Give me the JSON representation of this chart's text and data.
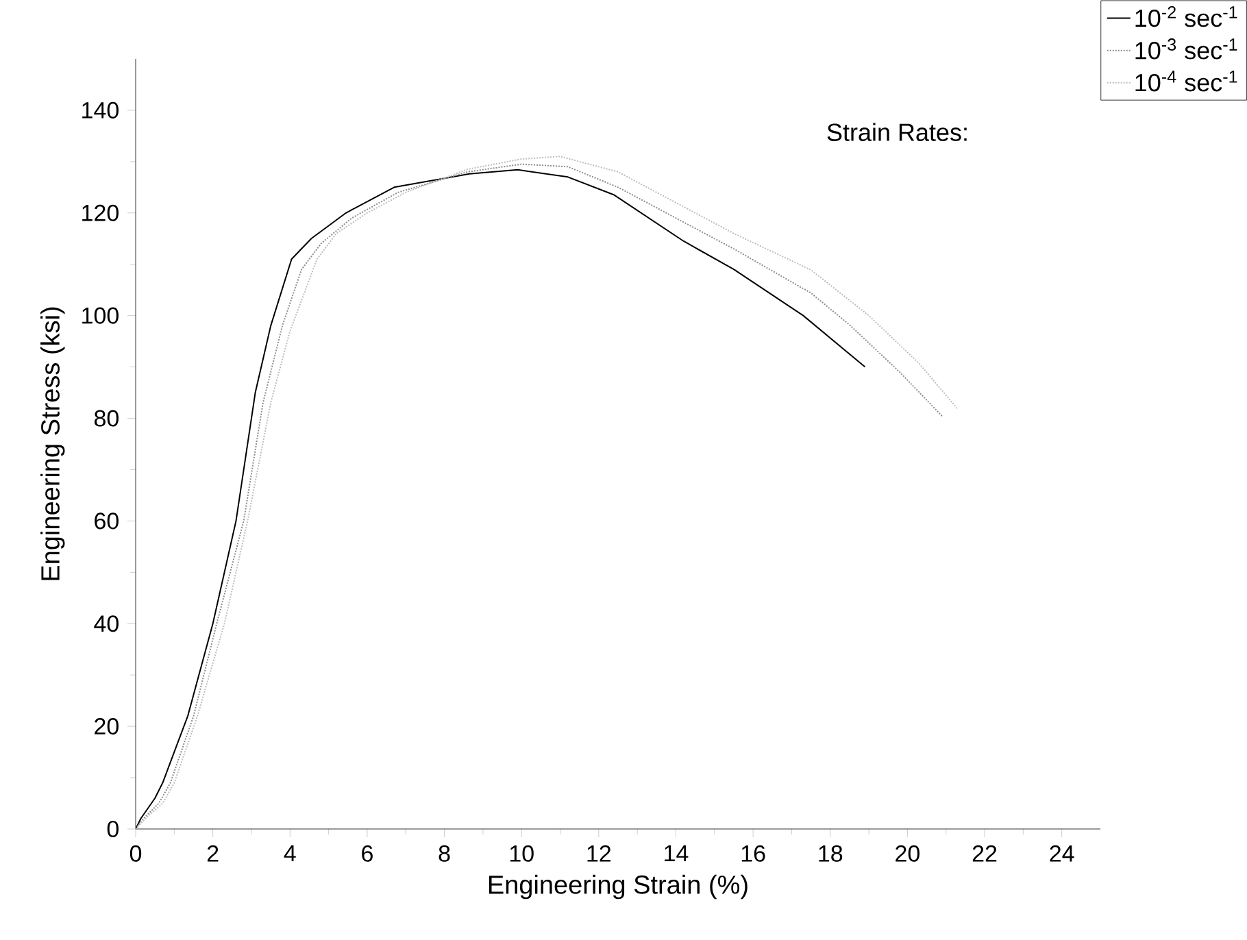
{
  "chart_data": {
    "type": "line",
    "xlabel": "Engineering Strain (%)",
    "ylabel": "Engineering Stress (ksi)",
    "legend_title": "Strain Rates:",
    "xlim": [
      0,
      25
    ],
    "ylim": [
      0,
      150
    ],
    "xticks": [
      0,
      2,
      4,
      6,
      8,
      10,
      12,
      14,
      16,
      18,
      20,
      22,
      24
    ],
    "yticks": [
      0,
      20,
      40,
      60,
      80,
      100,
      120,
      140
    ],
    "legend": "top right",
    "grid": false,
    "marker": "none",
    "series": [
      {
        "name": "10$^{-2}$ sec$^{-1}$",
        "color": "#000000",
        "line_style": "solid",
        "x": [
          0,
          0.13,
          0.5,
          0.7,
          1.35,
          2,
          2.6,
          3.1,
          3.5,
          4.04,
          4.55,
          5.45,
          6.7,
          8.65,
          9.9,
          11.2,
          12.4,
          14.2,
          15.5,
          17.3,
          18.9
        ],
        "values": [
          0,
          2,
          6,
          9,
          22,
          40,
          60,
          85,
          98,
          111,
          115,
          120,
          125,
          127.6,
          128.4,
          127,
          123.5,
          114.5,
          109,
          100,
          90
        ]
      },
      {
        "name": "10$^{-3}$ sec$^{-1}$",
        "color": "#8c8c8c",
        "line_style": "dotted",
        "x": [
          0,
          0.2,
          0.6,
          0.9,
          1.5,
          2.1,
          2.8,
          3.3,
          3.8,
          4.3,
          4.8,
          5.6,
          6.8,
          8.6,
          10,
          11.2,
          12.5,
          14,
          15.5,
          17.5,
          18.5,
          19.8,
          20.9
        ],
        "values": [
          0,
          2,
          5,
          9,
          22,
          40,
          60,
          83,
          98,
          109,
          114,
          119,
          124,
          128,
          129.5,
          129,
          125,
          119,
          113,
          104.4,
          98.2,
          89,
          80.4
        ]
      },
      {
        "name": "10$^{-4}$ sec$^{-1}$",
        "color": "#bdbdbd",
        "line_style": "dotted",
        "x": [
          0,
          0.25,
          0.7,
          1.0,
          1.6,
          2.3,
          2.9,
          3.5,
          4.0,
          4.7,
          5.2,
          6,
          7,
          8.6,
          10,
          11,
          12.5,
          14,
          15.5,
          17.5,
          19,
          20.3,
          21.3
        ],
        "values": [
          0,
          2,
          5,
          9,
          22,
          40,
          60,
          83,
          97,
          111,
          116,
          120,
          124,
          128.5,
          130.5,
          131,
          128,
          122,
          116,
          108.9,
          100,
          90.7,
          81.8
        ]
      }
    ]
  }
}
